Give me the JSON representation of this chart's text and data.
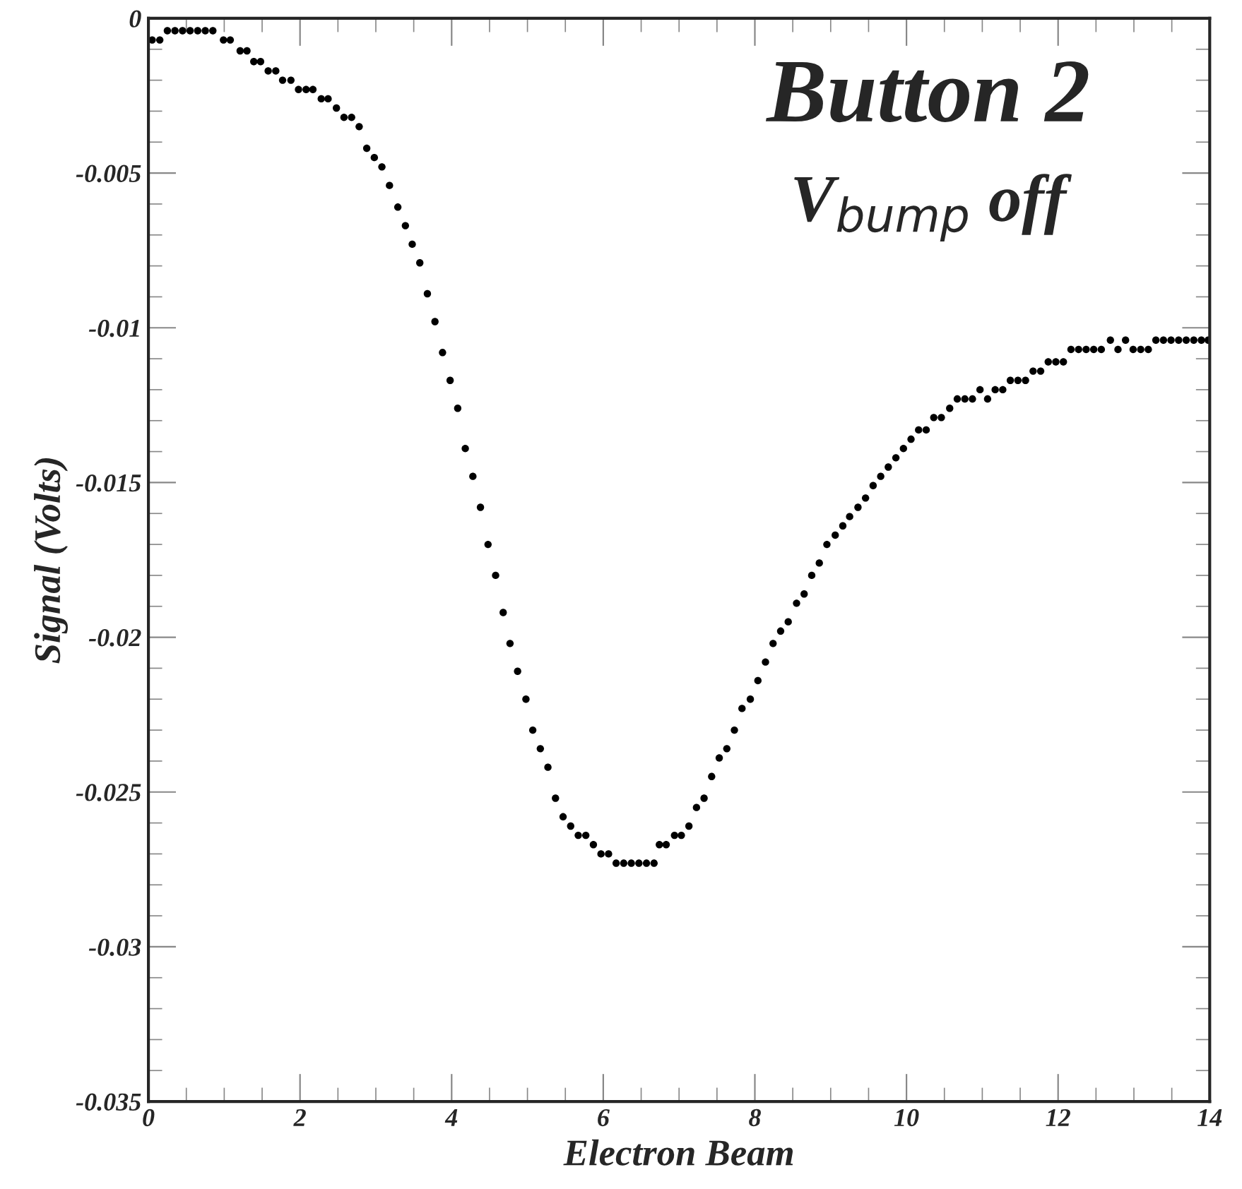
{
  "chart_data": {
    "type": "scatter",
    "title": "Button 2",
    "subtitle": "V$_{bump}$ off",
    "xlabel": "Electron Beam",
    "ylabel": "Signal (Volts)",
    "xlim": [
      0,
      14
    ],
    "ylim": [
      -0.035,
      0
    ],
    "xticks": [
      0,
      2,
      4,
      6,
      8,
      10,
      12,
      14
    ],
    "yticks": [
      -0.035,
      -0.03,
      -0.025,
      -0.02,
      -0.015,
      -0.01,
      -0.005,
      0
    ],
    "marker": "circle",
    "grid": false,
    "legend": false,
    "series": [
      {
        "color": "#000000",
        "x": [
          0.05,
          0.15,
          0.25,
          0.35,
          0.45,
          0.55,
          0.65,
          0.75,
          0.85,
          0.99,
          1.08,
          1.21,
          1.3,
          1.39,
          1.48,
          1.58,
          1.68,
          1.77,
          1.88,
          1.98,
          2.08,
          2.17,
          2.28,
          2.37,
          2.48,
          2.58,
          2.68,
          2.78,
          2.88,
          2.98,
          3.08,
          3.18,
          3.29,
          3.39,
          3.48,
          3.58,
          3.68,
          3.78,
          3.88,
          3.98,
          4.08,
          4.18,
          4.28,
          4.38,
          4.48,
          4.58,
          4.68,
          4.77,
          4.87,
          4.98,
          5.07,
          5.17,
          5.27,
          5.37,
          5.47,
          5.57,
          5.67,
          5.77,
          5.87,
          5.97,
          6.07,
          6.17,
          6.27,
          6.37,
          6.47,
          6.57,
          6.67,
          6.74,
          6.83,
          6.94,
          7.03,
          7.13,
          7.23,
          7.33,
          7.43,
          7.53,
          7.63,
          7.73,
          7.83,
          7.94,
          8.04,
          8.14,
          8.24,
          8.34,
          8.44,
          8.55,
          8.65,
          8.75,
          8.85,
          8.95,
          9.06,
          9.16,
          9.25,
          9.36,
          9.46,
          9.56,
          9.66,
          9.76,
          9.86,
          9.96,
          10.06,
          10.16,
          10.26,
          10.36,
          10.46,
          10.57,
          10.67,
          10.77,
          10.87,
          10.97,
          11.07,
          11.17,
          11.27,
          11.37,
          11.47,
          11.57,
          11.67,
          11.77,
          11.87,
          11.97,
          12.07,
          12.17,
          12.27,
          12.37,
          12.47,
          12.57,
          12.69,
          12.79,
          12.89,
          12.99,
          13.09,
          13.19,
          13.29,
          13.39,
          13.49,
          13.59,
          13.69,
          13.79,
          13.89,
          13.98
        ],
        "values": [
          -0.0007,
          -0.0007,
          -0.0004,
          -0.0004,
          -0.0004,
          -0.0004,
          -0.0004,
          -0.0004,
          -0.0004,
          -0.0007,
          -0.0007,
          -0.00105,
          -0.00105,
          -0.0014,
          -0.0014,
          -0.0017,
          -0.0017,
          -0.002,
          -0.002,
          -0.0023,
          -0.0023,
          -0.0023,
          -0.0026,
          -0.0026,
          -0.0029,
          -0.0032,
          -0.0032,
          -0.0035,
          -0.0042,
          -0.0045,
          -0.0048,
          -0.0054,
          -0.0061,
          -0.0067,
          -0.0073,
          -0.0079,
          -0.0089,
          -0.0098,
          -0.0108,
          -0.0117,
          -0.0126,
          -0.0139,
          -0.0148,
          -0.0158,
          -0.017,
          -0.018,
          -0.0192,
          -0.0202,
          -0.0211,
          -0.022,
          -0.023,
          -0.0236,
          -0.0242,
          -0.0252,
          -0.0258,
          -0.0261,
          -0.0264,
          -0.0264,
          -0.0267,
          -0.027,
          -0.027,
          -0.0273,
          -0.0273,
          -0.0273,
          -0.0273,
          -0.0273,
          -0.0273,
          -0.0267,
          -0.0267,
          -0.0264,
          -0.0264,
          -0.0261,
          -0.0255,
          -0.0252,
          -0.0245,
          -0.0239,
          -0.0236,
          -0.023,
          -0.0223,
          -0.022,
          -0.0214,
          -0.0208,
          -0.0202,
          -0.0198,
          -0.0195,
          -0.0189,
          -0.0186,
          -0.018,
          -0.0176,
          -0.017,
          -0.0167,
          -0.0164,
          -0.0161,
          -0.0158,
          -0.0155,
          -0.0151,
          -0.0148,
          -0.0145,
          -0.0142,
          -0.0139,
          -0.0136,
          -0.0133,
          -0.0133,
          -0.0129,
          -0.0129,
          -0.0126,
          -0.0123,
          -0.0123,
          -0.0123,
          -0.012,
          -0.0123,
          -0.012,
          -0.012,
          -0.0117,
          -0.0117,
          -0.0117,
          -0.0114,
          -0.0114,
          -0.0111,
          -0.0111,
          -0.0111,
          -0.0107,
          -0.0107,
          -0.0107,
          -0.0107,
          -0.0107,
          -0.0104,
          -0.0107,
          -0.0104,
          -0.0107,
          -0.0107,
          -0.0107,
          -0.0104,
          -0.0104,
          -0.0104,
          -0.0104,
          -0.0104,
          -0.0104,
          -0.0104,
          -0.0104
        ]
      }
    ]
  }
}
